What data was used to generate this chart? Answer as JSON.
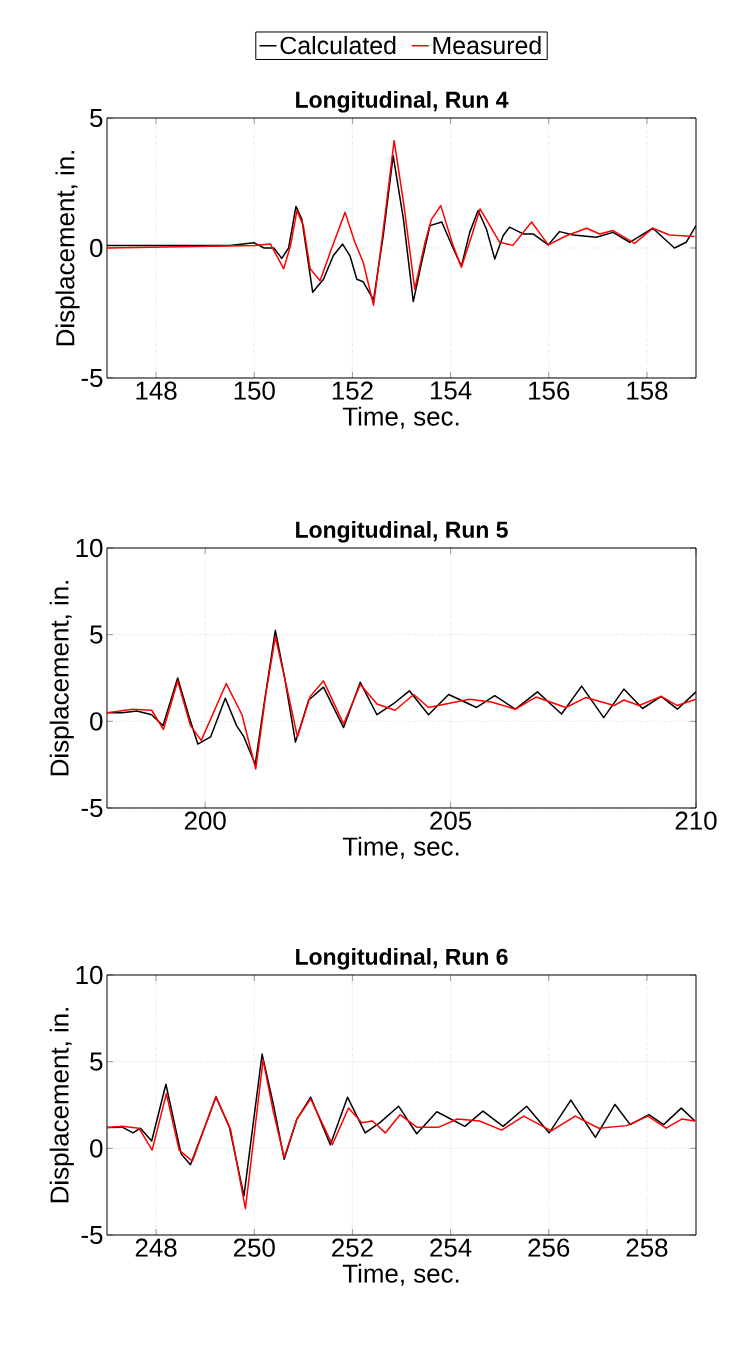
{
  "chart_data": [
    {
      "type": "line",
      "title": "Longitudinal, Run 4",
      "xlabel": "Time, sec.",
      "ylabel": "Displacement, in.",
      "xlim": [
        147,
        159
      ],
      "ylim": [
        -5,
        5
      ],
      "xticks": [
        148,
        150,
        152,
        154,
        156,
        158
      ],
      "yticks": [
        -5,
        0,
        5
      ],
      "grid": true,
      "legend": "top",
      "series": [
        {
          "name": "Calculated",
          "color": "#000000",
          "x": [
            147,
            149.5,
            150,
            150.2,
            150.4,
            150.56,
            150.7,
            150.85,
            150.97,
            151.19,
            151.41,
            151.61,
            151.8,
            151.95,
            152.09,
            152.22,
            152.43,
            152.63,
            152.83,
            153.04,
            153.24,
            153.41,
            153.58,
            153.82,
            154.05,
            154.22,
            154.39,
            154.56,
            154.73,
            154.9,
            155.07,
            155.2,
            155.48,
            155.68,
            155.99,
            156.22,
            156.5,
            156.97,
            157.31,
            157.65,
            158.12,
            158.56,
            158.8,
            159
          ],
          "values": [
            0.1,
            0.1,
            0.2,
            0,
            0,
            -0.4,
            0,
            1.6,
            1.1,
            -1.7,
            -1.2,
            -0.3,
            0.15,
            -0.3,
            -1.2,
            -1.3,
            -2.0,
            0.5,
            3.55,
            1.1,
            -2.06,
            -0.55,
            0.86,
            1.0,
            0,
            -0.7,
            0.6,
            1.44,
            0.73,
            -0.42,
            0.47,
            0.8,
            0.54,
            0.54,
            0.12,
            0.63,
            0.5,
            0.41,
            0.6,
            0.22,
            0.76,
            0,
            0.22,
            0.86
          ]
        },
        {
          "name": "Measured",
          "color": "#ff0000",
          "x": [
            147,
            150,
            150.33,
            150.6,
            150.74,
            150.87,
            151.0,
            151.14,
            151.34,
            151.58,
            151.85,
            152.05,
            152.22,
            152.43,
            152.63,
            152.85,
            153.04,
            153.27,
            153.48,
            153.61,
            153.8,
            154.05,
            154.22,
            154.43,
            154.6,
            154.8,
            155.0,
            155.27,
            155.65,
            155.99,
            156.36,
            156.77,
            157.04,
            157.31,
            157.75,
            158.12,
            158.46,
            158.97
          ],
          "values": [
            0.0,
            0.1,
            0.15,
            -0.8,
            0.1,
            1.44,
            0.86,
            -0.8,
            -1.26,
            0,
            1.37,
            0.22,
            -0.55,
            -2.2,
            0.73,
            4.13,
            1.76,
            -1.58,
            0.22,
            1.1,
            1.63,
            0.1,
            -0.74,
            0.47,
            1.5,
            0.86,
            0.22,
            0.1,
            1.0,
            0.12,
            0.47,
            0.76,
            0.54,
            0.67,
            0.18,
            0.76,
            0.5,
            0.44
          ]
        }
      ]
    },
    {
      "type": "line",
      "title": "Longitudinal, Run 5",
      "xlabel": "Time, sec.",
      "ylabel": "Displacement, in.",
      "xlim": [
        198,
        210
      ],
      "ylim": [
        -5,
        10
      ],
      "xticks": [
        200,
        205,
        210
      ],
      "yticks": [
        -5,
        0,
        5,
        10
      ],
      "grid": true,
      "series": [
        {
          "color": "#000000",
          "x": [
            198,
            198.31,
            198.61,
            198.91,
            199.14,
            199.44,
            199.66,
            199.85,
            200.11,
            200.41,
            200.64,
            200.79,
            201.02,
            201.2,
            201.43,
            201.62,
            201.84,
            202.11,
            202.41,
            202.82,
            203.16,
            203.5,
            203.83,
            204.16,
            204.55,
            204.96,
            205.53,
            205.9,
            206.32,
            206.77,
            207.26,
            207.67,
            208.12,
            208.53,
            208.91,
            209.29,
            209.62,
            210.0
          ],
          "values": [
            0.5,
            0.49,
            0.6,
            0.38,
            -0.25,
            2.5,
            0.38,
            -1.31,
            -0.9,
            1.33,
            -0.25,
            -0.9,
            -2.48,
            1.0,
            5.25,
            2.5,
            -1.2,
            1.23,
            1.97,
            -0.36,
            2.25,
            0.38,
            1.0,
            1.76,
            0.38,
            1.55,
            0.8,
            1.48,
            0.7,
            1.7,
            0.42,
            2.03,
            0.21,
            1.86,
            0.74,
            1.44,
            0.7,
            1.7
          ]
        },
        {
          "color": "#ff0000",
          "x": [
            198,
            198.53,
            198.91,
            199.15,
            199.44,
            199.7,
            199.92,
            200.43,
            200.75,
            201.03,
            201.24,
            201.43,
            201.62,
            201.88,
            202.14,
            202.41,
            202.82,
            203.16,
            203.5,
            203.87,
            204.25,
            204.55,
            205.38,
            205.83,
            206.32,
            206.74,
            207.35,
            207.76,
            208.33,
            208.53,
            208.84,
            209.29,
            209.62,
            210.0
          ],
          "values": [
            0.5,
            0.7,
            0.64,
            -0.47,
            2.33,
            -0.25,
            -1.1,
            2.18,
            0.38,
            -2.75,
            1.65,
            4.87,
            2.5,
            -0.9,
            1.44,
            2.33,
            -0.15,
            2.12,
            1.0,
            0.64,
            1.55,
            0.8,
            1.27,
            1.12,
            0.7,
            1.4,
            0.8,
            1.38,
            0.91,
            1.23,
            0.91,
            1.44,
            0.91,
            1.27
          ]
        }
      ]
    },
    {
      "type": "line",
      "title": "Longitudinal, Run 6",
      "xlabel": "Time, sec.",
      "ylabel": "Displacement, in.",
      "xlim": [
        247,
        259
      ],
      "ylim": [
        -5,
        10
      ],
      "xticks": [
        248,
        250,
        252,
        254,
        256,
        258
      ],
      "yticks": [
        -5,
        0,
        5,
        10
      ],
      "grid": true,
      "series": [
        {
          "color": "#000000",
          "x": [
            247,
            247.31,
            247.53,
            247.68,
            247.91,
            248.2,
            248.51,
            248.7,
            249.22,
            249.49,
            249.79,
            250.16,
            250.39,
            250.61,
            250.87,
            251.15,
            251.55,
            251.9,
            252.26,
            252.56,
            252.94,
            253.31,
            253.72,
            254.29,
            254.66,
            255.07,
            255.55,
            256.01,
            256.45,
            256.95,
            257.35,
            257.66,
            258.04,
            258.34,
            258.7,
            258.98
          ],
          "values": [
            1.2,
            1.22,
            0.89,
            1.16,
            0.42,
            3.7,
            -0.32,
            -0.95,
            2.95,
            1.27,
            -2.74,
            5.44,
            2.53,
            -0.63,
            1.69,
            2.95,
            0.21,
            2.95,
            0.89,
            1.48,
            2.43,
            0.84,
            2.11,
            1.27,
            2.15,
            1.27,
            2.43,
            0.89,
            2.78,
            0.63,
            2.53,
            1.37,
            1.94,
            1.37,
            2.32,
            1.58
          ]
        },
        {
          "color": "#ff0000",
          "x": [
            247,
            247.31,
            247.65,
            247.92,
            248.21,
            248.47,
            248.74,
            249.22,
            249.52,
            249.82,
            250.18,
            250.39,
            250.61,
            250.87,
            251.15,
            251.59,
            251.92,
            252.19,
            252.41,
            252.67,
            252.97,
            253.31,
            253.76,
            254.14,
            254.59,
            255.04,
            255.49,
            256.05,
            256.54,
            257.02,
            257.59,
            258.02,
            258.39,
            258.71,
            258.98
          ],
          "values": [
            1.2,
            1.27,
            1.16,
            -0.1,
            3.16,
            -0.1,
            -0.74,
            3.0,
            1.05,
            -3.48,
            5.1,
            2.11,
            -0.53,
            1.69,
            2.85,
            0.21,
            2.32,
            1.48,
            1.58,
            0.89,
            1.94,
            1.22,
            1.22,
            1.69,
            1.58,
            1.05,
            1.86,
            1.01,
            1.86,
            1.16,
            1.31,
            1.86,
            1.16,
            1.69,
            1.58
          ]
        }
      ]
    }
  ]
}
